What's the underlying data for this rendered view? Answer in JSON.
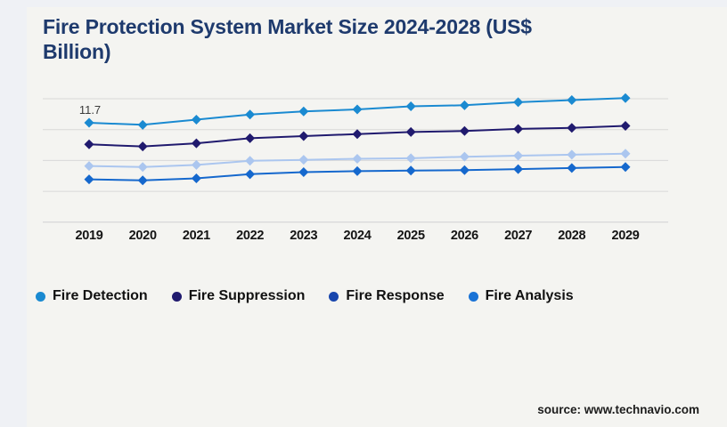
{
  "header": {
    "title_line1": "Fire Protection System Market Size 2024-2028 (US$",
    "title_line2": "Billion)"
  },
  "chart_data": {
    "type": "line",
    "title": "Fire Protection System Market Size 2024-2028 (US$ Billion)",
    "categories": [
      "2019",
      "2020",
      "2021",
      "2022",
      "2023",
      "2024",
      "2025",
      "2026",
      "2027",
      "2028",
      "2029"
    ],
    "series": [
      {
        "name": "Fire Detection",
        "color": "#1a8ad1",
        "legend_color": "#1a8ad1",
        "values": [
          11.7,
          11.5,
          12.0,
          12.5,
          12.8,
          13.0,
          13.3,
          13.4,
          13.7,
          13.9,
          14.1
        ]
      },
      {
        "name": "Fire Suppression",
        "color": "#201a6e",
        "legend_color": "#201a6e",
        "values": [
          9.6,
          9.4,
          9.7,
          10.2,
          10.4,
          10.6,
          10.8,
          10.9,
          11.1,
          11.2,
          11.4
        ]
      },
      {
        "name": "Fire Response",
        "color": "#abc6ef",
        "legend_color": "#1846ad",
        "values": [
          7.5,
          7.4,
          7.6,
          8.0,
          8.1,
          8.2,
          8.25,
          8.4,
          8.5,
          8.6,
          8.7
        ]
      },
      {
        "name": "Fire Analysis",
        "color": "#1568cd",
        "legend_color": "#1a73d6",
        "values": [
          6.2,
          6.1,
          6.3,
          6.7,
          6.9,
          7.0,
          7.05,
          7.1,
          7.2,
          7.3,
          7.4
        ]
      }
    ],
    "annotations": [
      {
        "series": "Fire Detection",
        "category": "2019",
        "label": "11.7"
      }
    ],
    "xlabel": "",
    "ylabel": "",
    "ylim": [
      2,
      14.5
    ],
    "y_axis_labels_visible": false,
    "gridlines": "horizontal",
    "marker": "diamond",
    "legend_position": "bottom"
  },
  "footer": {
    "source": "source: www.technavio.com"
  }
}
